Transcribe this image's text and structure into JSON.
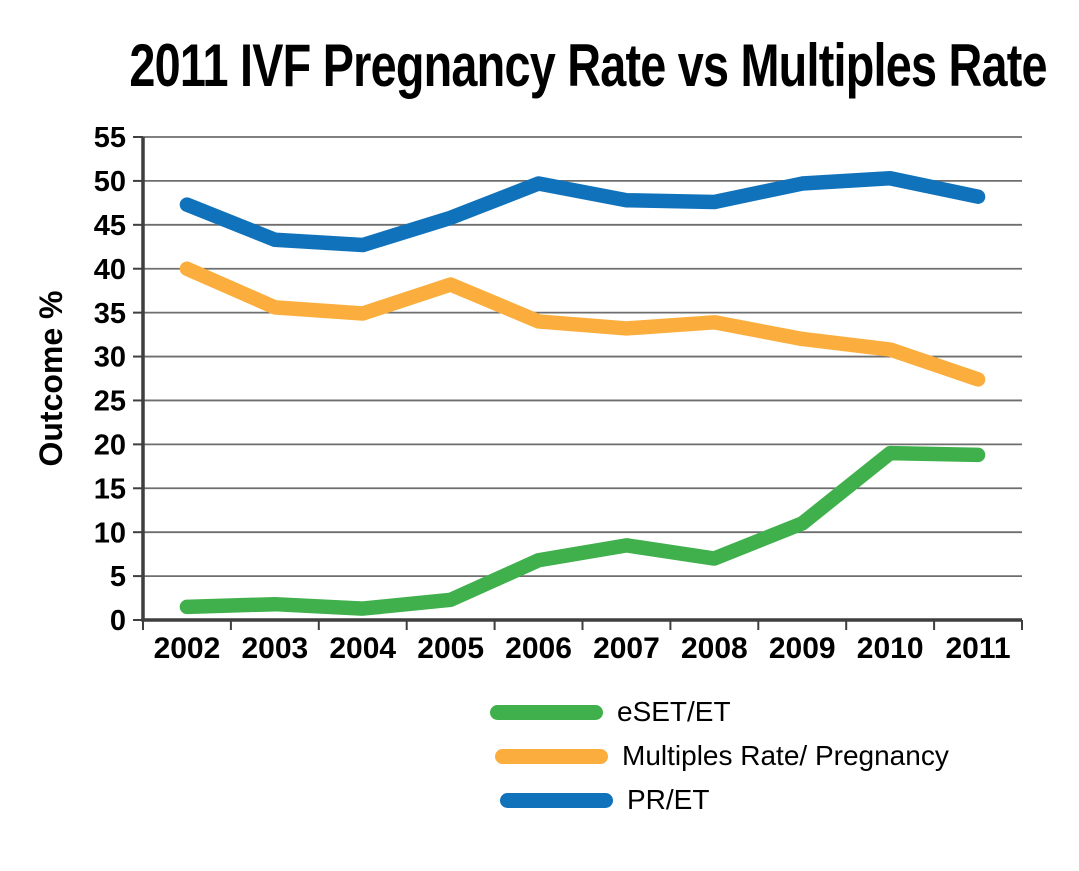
{
  "title": "2011 IVF Pregnancy Rate vs Multiples Rate",
  "chart_data": {
    "type": "line",
    "title": "2011 IVF Pregnancy Rate vs Multiples Rate",
    "xlabel": "",
    "ylabel": "Outcome %",
    "ylim": [
      0,
      55
    ],
    "yticks": [
      0,
      5,
      10,
      15,
      20,
      25,
      30,
      35,
      40,
      45,
      50,
      55
    ],
    "grid": true,
    "legend_position": "bottom-center",
    "categories": [
      "2002",
      "2003",
      "2004",
      "2005",
      "2006",
      "2007",
      "2008",
      "2009",
      "2010",
      "2011"
    ],
    "series": [
      {
        "name": "eSET/ET",
        "color": "#3FB04C",
        "values": [
          1.5,
          1.8,
          1.3,
          2.3,
          6.8,
          8.5,
          7.0,
          11.0,
          19.0,
          18.8
        ]
      },
      {
        "name": "Multiples Rate/ Pregnancy",
        "color": "#FBAE3D",
        "values": [
          40.0,
          35.6,
          34.9,
          38.2,
          34.0,
          33.2,
          33.9,
          32.0,
          30.8,
          27.4
        ]
      },
      {
        "name": "PR/ET",
        "color": "#1072BB",
        "values": [
          47.3,
          43.3,
          42.7,
          45.8,
          49.7,
          47.8,
          47.6,
          49.7,
          50.3,
          48.2
        ]
      }
    ],
    "style": {
      "grid_color": "#6E6E6E",
      "axis_color": "#3F3F3F",
      "text_color": "#000000",
      "background": "#FFFFFF"
    }
  }
}
